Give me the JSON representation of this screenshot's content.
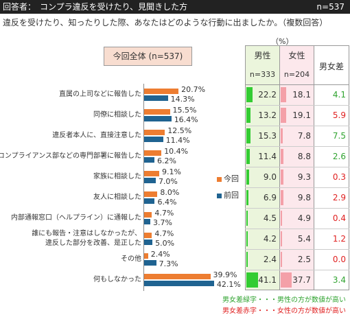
{
  "header": {
    "left": "回答者：　コンプラ違反を受けたり、見聞きした方",
    "right": "n=537"
  },
  "question": "違反を受けたり、知ったりした際、あなたはどのような行動に出ましたか。（複数回答）",
  "unit": "（%）",
  "overall_label": "今回全体 (n=537)",
  "table": {
    "male": {
      "label": "男性",
      "n": "n=333"
    },
    "female": {
      "label": "女性",
      "n": "n=204"
    },
    "diff": {
      "label": "男女差"
    }
  },
  "legend": {
    "now": "今回",
    "prev": "前回"
  },
  "notes": {
    "green": "男女差緑字・・・男性の方が数値が高い",
    "red": "男女差赤字・・・女性の方が数値が高い"
  },
  "colors": {
    "now": "#ed7d31",
    "prev": "#1f6391",
    "male": "#33cc33",
    "female": "#f4a0a8",
    "male_col_bg": "#ebf5dc",
    "female_col_bg": "#fce8ec",
    "green": "#2fa32f",
    "red": "#e02020"
  },
  "chart_data": {
    "type": "bar",
    "orientation": "horizontal",
    "categories": [
      "直属の上司などに報告した",
      "同僚に相談した",
      "違反者本人に、直接注意した",
      "コンプライアンス部などの専門部署に報告した",
      "家族に相談した",
      "友人に相談した",
      "内部通報窓口（ヘルプライン）に通報した",
      "誰にも報告・注意はしなかったが、\n違反した部分を改善、是正した",
      "その他",
      "何もしなかった"
    ],
    "series": [
      {
        "name": "今回",
        "values": [
          20.7,
          15.5,
          12.5,
          10.4,
          9.1,
          8.0,
          4.7,
          4.7,
          2.4,
          39.9
        ],
        "labels": [
          "20.7%",
          "15.5%",
          "12.5%",
          "10.4%",
          "9.1%",
          "8.0%",
          "4.7%",
          "4.7%",
          "2.4%",
          "39.9%"
        ]
      },
      {
        "name": "前回",
        "values": [
          14.3,
          16.4,
          11.4,
          6.2,
          7.0,
          6.4,
          3.7,
          5.0,
          7.3,
          42.1
        ],
        "labels": [
          "14.3%",
          "16.4%",
          "11.4%",
          "6.2%",
          "7.0%",
          "6.4%",
          "3.7%",
          "5.0%",
          "7.3%",
          "42.1%"
        ]
      }
    ],
    "male": [
      "22.2",
      "13.2",
      "15.3",
      "11.4",
      "9.0",
      "6.9",
      "4.5",
      "4.2",
      "2.4",
      "41.1"
    ],
    "female": [
      "18.1",
      "19.1",
      "7.8",
      "8.8",
      "9.3",
      "9.8",
      "4.9",
      "5.4",
      "2.5",
      "37.7"
    ],
    "diff": [
      {
        "text": "4.1",
        "sign": "male"
      },
      {
        "text": "5.9",
        "sign": "female"
      },
      {
        "text": "7.5",
        "sign": "male"
      },
      {
        "text": "2.6",
        "sign": "male"
      },
      {
        "text": "0.3",
        "sign": "female"
      },
      {
        "text": "2.9",
        "sign": "female"
      },
      {
        "text": "0.4",
        "sign": "female"
      },
      {
        "text": "1.2",
        "sign": "female"
      },
      {
        "text": "0.0",
        "sign": "female"
      },
      {
        "text": "3.4",
        "sign": "male"
      }
    ]
  }
}
